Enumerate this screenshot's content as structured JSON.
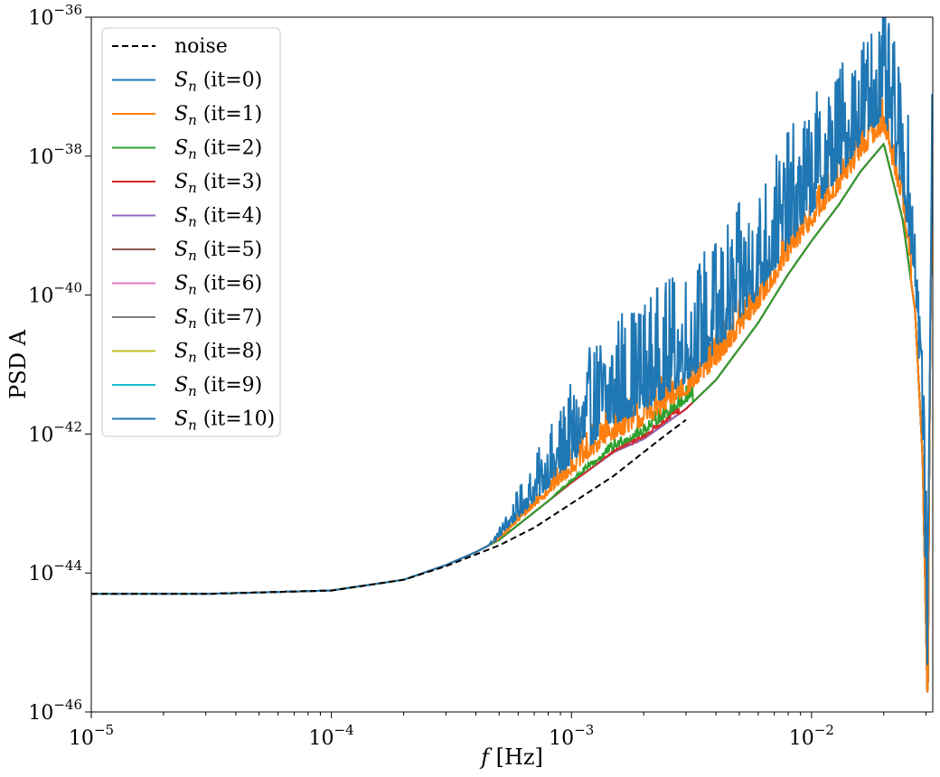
{
  "chart_data": {
    "type": "line",
    "title": "",
    "xlabel": "f [Hz]",
    "ylabel": "PSD A",
    "xscale": "log",
    "yscale": "log",
    "xlim": [
      1e-05,
      0.032
    ],
    "ylim": [
      1e-46,
      1e-36
    ],
    "grid": false,
    "legend_position": "top-left",
    "x_ticks": [
      {
        "value": 1e-05,
        "base": "10",
        "exp": "−5"
      },
      {
        "value": 0.0001,
        "base": "10",
        "exp": "−4"
      },
      {
        "value": 0.001,
        "base": "10",
        "exp": "−3"
      },
      {
        "value": 0.01,
        "base": "10",
        "exp": "−2"
      }
    ],
    "y_ticks": [
      {
        "value": 1e-46,
        "base": "10",
        "exp": "−46"
      },
      {
        "value": 1e-44,
        "base": "10",
        "exp": "−44"
      },
      {
        "value": 1e-42,
        "base": "10",
        "exp": "−42"
      },
      {
        "value": 1e-40,
        "base": "10",
        "exp": "−40"
      },
      {
        "value": 1e-38,
        "base": "10",
        "exp": "−38"
      },
      {
        "value": 1e-36,
        "base": "10",
        "exp": "−36"
      }
    ],
    "noise_curve": {
      "name": "noise",
      "style": "dashed",
      "color": "#000000",
      "x": [
        1e-05,
        3e-05,
        0.0001,
        0.0002,
        0.0003,
        0.0005,
        0.0007,
        0.001,
        0.0015,
        0.002,
        0.0025,
        0.003
      ],
      "y": [
        5e-45,
        5e-45,
        5.6e-45,
        8e-45,
        1.25e-44,
        2.5e-44,
        4.5e-44,
        1e-43,
        2.5e-43,
        5.5e-43,
        1e-42,
        1.6e-42
      ]
    },
    "shared_curve": {
      "x": [
        1e-05,
        3e-05,
        0.0001,
        0.0002,
        0.0003,
        0.0004,
        0.0005,
        0.0007,
        0.001,
        0.0015,
        0.002,
        0.003,
        0.004,
        0.006,
        0.008,
        0.01,
        0.013,
        0.016,
        0.02,
        0.024,
        0.027,
        0.029,
        0.0305,
        0.031,
        0.0315,
        0.032
      ],
      "y": [
        5e-45,
        5e-45,
        5.6e-45,
        8e-45,
        1.3e-44,
        2e-44,
        3e-44,
        7.5e-44,
        2e-43,
        5.5e-43,
        8.5e-43,
        2.3e-42,
        6e-42,
        4e-41,
        2e-40,
        6e-40,
        2e-39,
        6e-39,
        1.5e-38,
        1.2e-39,
        6e-41,
        5e-43,
        1e-46,
        1e-42,
        3e-40,
        1e-39
      ]
    },
    "series": [
      {
        "name": "S_n (it=0)",
        "label": "(it=0)",
        "color": "#1f77b4",
        "noise_start": 0.00045,
        "noise_end": 0.032,
        "bump": 6.0,
        "amp": 1.7
      },
      {
        "name": "S_n (it=1)",
        "label": "(it=1)",
        "color": "#ff7f0e",
        "noise_start": 0.00045,
        "noise_end": 0.026,
        "bump": 2.4,
        "amp": 0.55
      },
      {
        "name": "S_n (it=2)",
        "label": "(it=2)",
        "color": "#2ca02c",
        "noise_start": 0.0008,
        "noise_end": 0.0032,
        "bump": 1.5,
        "amp": 0.25
      },
      {
        "name": "S_n (it=3)",
        "label": "(it=3)",
        "color": "#d62728",
        "noise_start": 0.0012,
        "noise_end": 0.0028,
        "bump": 1.2,
        "amp": 0.15
      },
      {
        "name": "S_n (it=4)",
        "label": "(it=4)",
        "color": "#9467bd",
        "noise_start": 0,
        "noise_end": 0,
        "bump": 1.0,
        "amp": 0
      },
      {
        "name": "S_n (it=5)",
        "label": "(it=5)",
        "color": "#8c564b",
        "noise_start": 0,
        "noise_end": 0,
        "bump": 1.0,
        "amp": 0
      },
      {
        "name": "S_n (it=6)",
        "label": "(it=6)",
        "color": "#e377c2",
        "noise_start": 0,
        "noise_end": 0,
        "bump": 1.0,
        "amp": 0
      },
      {
        "name": "S_n (it=7)",
        "label": "(it=7)",
        "color": "#7f7f7f",
        "noise_start": 0,
        "noise_end": 0,
        "bump": 1.0,
        "amp": 0
      },
      {
        "name": "S_n (it=8)",
        "label": "(it=8)",
        "color": "#bcbd22",
        "noise_start": 0,
        "noise_end": 0,
        "bump": 1.0,
        "amp": 0
      },
      {
        "name": "S_n (it=9)",
        "label": "(it=9)",
        "color": "#17becf",
        "noise_start": 0,
        "noise_end": 0,
        "bump": 1.0,
        "amp": 0
      },
      {
        "name": "S_n (it=10)",
        "label": "(it=10)",
        "color": "#1f77b4",
        "noise_start": 0,
        "noise_end": 0,
        "bump": 1.0,
        "amp": 0
      }
    ],
    "legend": {
      "noise_label": "noise",
      "sn_symbol": "S",
      "sn_subscript": "n"
    }
  }
}
